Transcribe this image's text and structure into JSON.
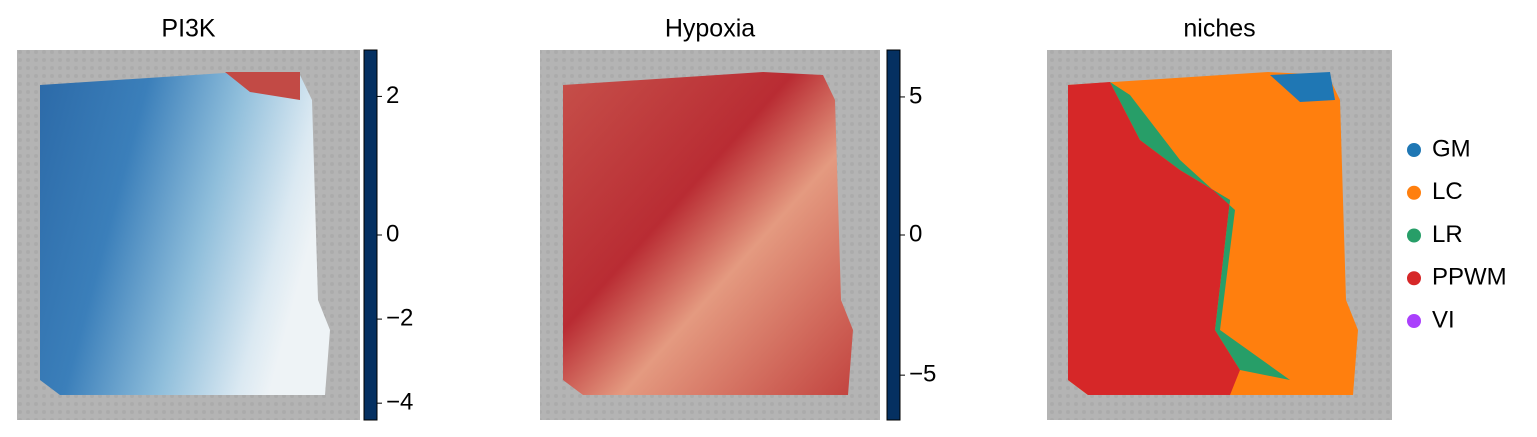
{
  "chart_data": [
    {
      "type": "spatial-continuous",
      "title": "PI3K",
      "cmap": [
        "#053061",
        "#2166ac",
        "#92c5de",
        "#f7f7f7",
        "#f4a582",
        "#b2182b",
        "#67001f"
      ],
      "clim": [
        -4.4,
        2.67
      ],
      "center": 0,
      "cticks": [
        {
          "value": -4,
          "label": "−4"
        },
        {
          "value": -2,
          "label": "−2"
        },
        0,
        2
      ]
    },
    {
      "type": "spatial-continuous",
      "title": "Hypoxia",
      "cmap": [
        "#053061",
        "#2166ac",
        "#92c5de",
        "#f7f7f7",
        "#f4a582",
        "#b2182b",
        "#67001f"
      ],
      "clim": [
        -6.6,
        6.7
      ],
      "center": 0,
      "cticks": [
        {
          "value": -5,
          "label": "−5"
        },
        0,
        5
      ]
    },
    {
      "type": "spatial-categorical",
      "title": "niches",
      "categories": [
        "GM",
        "LC",
        "LR",
        "PPWM",
        "VI"
      ],
      "colors": [
        "#1f77b4",
        "#ff7f0e",
        "#279e68",
        "#d62728",
        "#aa40fc"
      ]
    }
  ]
}
